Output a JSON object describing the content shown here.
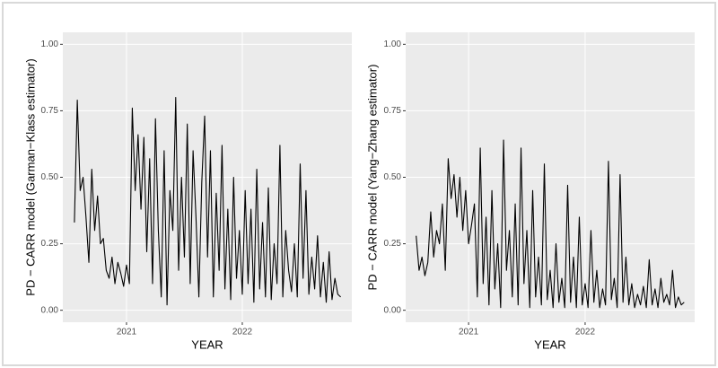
{
  "chart_data": [
    {
      "type": "line",
      "ylabel": "PD − CARR model (Garman−Klass estimator)",
      "xlabel": "YEAR",
      "x": [
        2020.55,
        2020.575,
        2020.6,
        2020.625,
        2020.65,
        2020.675,
        2020.7,
        2020.725,
        2020.75,
        2020.775,
        2020.8,
        2020.825,
        2020.85,
        2020.875,
        2020.9,
        2020.925,
        2020.95,
        2020.975,
        2021,
        2021.025,
        2021.05,
        2021.075,
        2021.1,
        2021.125,
        2021.15,
        2021.175,
        2021.2,
        2021.225,
        2021.25,
        2021.275,
        2021.3,
        2021.325,
        2021.35,
        2021.375,
        2021.4,
        2021.425,
        2021.45,
        2021.475,
        2021.5,
        2021.525,
        2021.55,
        2021.575,
        2021.6,
        2021.625,
        2021.65,
        2021.675,
        2021.7,
        2021.725,
        2021.75,
        2021.775,
        2021.8,
        2021.825,
        2021.85,
        2021.875,
        2021.9,
        2021.925,
        2021.95,
        2021.975,
        2022,
        2022.025,
        2022.05,
        2022.075,
        2022.1,
        2022.125,
        2022.15,
        2022.175,
        2022.2,
        2022.225,
        2022.25,
        2022.275,
        2022.3,
        2022.325,
        2022.35,
        2022.375,
        2022.4,
        2022.425,
        2022.45,
        2022.475,
        2022.5,
        2022.525,
        2022.55,
        2022.575,
        2022.6,
        2022.625,
        2022.65,
        2022.675,
        2022.7,
        2022.725,
        2022.75,
        2022.775,
        2022.8,
        2022.825,
        2022.85
      ],
      "series": [
        {
          "color": "#000000",
          "values": [
            0.33,
            0.79,
            0.45,
            0.5,
            0.35,
            0.18,
            0.53,
            0.3,
            0.43,
            0.25,
            0.27,
            0.15,
            0.12,
            0.2,
            0.1,
            0.18,
            0.14,
            0.09,
            0.17,
            0.1,
            0.76,
            0.45,
            0.66,
            0.38,
            0.65,
            0.22,
            0.57,
            0.1,
            0.72,
            0.3,
            0.05,
            0.6,
            0.02,
            0.45,
            0.3,
            0.8,
            0.15,
            0.5,
            0.2,
            0.7,
            0.1,
            0.6,
            0.35,
            0.05,
            0.48,
            0.73,
            0.2,
            0.6,
            0.05,
            0.44,
            0.15,
            0.62,
            0.08,
            0.38,
            0.04,
            0.5,
            0.12,
            0.3,
            0.06,
            0.45,
            0.1,
            0.38,
            0.03,
            0.53,
            0.08,
            0.33,
            0.05,
            0.46,
            0.04,
            0.25,
            0.1,
            0.62,
            0.05,
            0.3,
            0.15,
            0.07,
            0.25,
            0.05,
            0.55,
            0.12,
            0.45,
            0.06,
            0.2,
            0.08,
            0.28,
            0.05,
            0.18,
            0.03,
            0.22,
            0.04,
            0.12,
            0.06,
            0.05
          ]
        }
      ],
      "xlim": [
        2020.45,
        2022.946
      ],
      "xticks": [
        2021,
        2022
      ],
      "ylim": [
        -0.045,
        1.045
      ],
      "yticks": [
        {
          "value": 0,
          "label": "0.00"
        },
        {
          "value": 0.25,
          "label": "0.25"
        },
        {
          "value": 0.5,
          "label": "0.50"
        },
        {
          "value": 0.75,
          "label": "0.75"
        },
        {
          "value": 1,
          "label": "1.00"
        }
      ],
      "grid": true
    },
    {
      "type": "line",
      "ylabel": "PD − CARR model (Yang−Zhang estimator)",
      "xlabel": "YEAR",
      "x": [
        2020.55,
        2020.575,
        2020.6,
        2020.625,
        2020.65,
        2020.675,
        2020.7,
        2020.725,
        2020.75,
        2020.775,
        2020.8,
        2020.825,
        2020.85,
        2020.875,
        2020.9,
        2020.925,
        2020.95,
        2020.975,
        2021,
        2021.025,
        2021.05,
        2021.075,
        2021.1,
        2021.125,
        2021.15,
        2021.175,
        2021.2,
        2021.225,
        2021.25,
        2021.275,
        2021.3,
        2021.325,
        2021.35,
        2021.375,
        2021.4,
        2021.425,
        2021.45,
        2021.475,
        2021.5,
        2021.525,
        2021.55,
        2021.575,
        2021.6,
        2021.625,
        2021.65,
        2021.675,
        2021.7,
        2021.725,
        2021.75,
        2021.775,
        2021.8,
        2021.825,
        2021.85,
        2021.875,
        2021.9,
        2021.925,
        2021.95,
        2021.975,
        2022,
        2022.025,
        2022.05,
        2022.075,
        2022.1,
        2022.125,
        2022.15,
        2022.175,
        2022.2,
        2022.225,
        2022.25,
        2022.275,
        2022.3,
        2022.325,
        2022.35,
        2022.375,
        2022.4,
        2022.425,
        2022.45,
        2022.475,
        2022.5,
        2022.525,
        2022.55,
        2022.575,
        2022.6,
        2022.625,
        2022.65,
        2022.675,
        2022.7,
        2022.725,
        2022.75,
        2022.775,
        2022.8,
        2022.825,
        2022.85
      ],
      "series": [
        {
          "color": "#000000",
          "values": [
            0.28,
            0.15,
            0.2,
            0.13,
            0.18,
            0.37,
            0.2,
            0.3,
            0.25,
            0.4,
            0.15,
            0.57,
            0.42,
            0.51,
            0.35,
            0.5,
            0.3,
            0.45,
            0.25,
            0.32,
            0.4,
            0.05,
            0.61,
            0.1,
            0.35,
            0.02,
            0.45,
            0.08,
            0.25,
            0.01,
            0.64,
            0.15,
            0.3,
            0.05,
            0.4,
            0.02,
            0.61,
            0.1,
            0.3,
            0.01,
            0.45,
            0.05,
            0.2,
            0.02,
            0.55,
            0.04,
            0.15,
            0.01,
            0.25,
            0.03,
            0.12,
            0.01,
            0.47,
            0.03,
            0.2,
            0.01,
            0.35,
            0.02,
            0.1,
            0.01,
            0.3,
            0.03,
            0.15,
            0.01,
            0.08,
            0.02,
            0.56,
            0.04,
            0.12,
            0.01,
            0.51,
            0.03,
            0.2,
            0.02,
            0.1,
            0.01,
            0.06,
            0.02,
            0.09,
            0.01,
            0.19,
            0.02,
            0.08,
            0.01,
            0.12,
            0.03,
            0.06,
            0.02,
            0.15,
            0.01,
            0.05,
            0.02,
            0.03
          ]
        }
      ],
      "xlim": [
        2020.46,
        2022.94
      ],
      "xticks": [
        2021,
        2022
      ],
      "ylim": [
        -0.045,
        1.045
      ],
      "yticks": [
        {
          "value": 0,
          "label": "0.00"
        },
        {
          "value": 0.25,
          "label": "0.25"
        },
        {
          "value": 0.5,
          "label": "0.50"
        },
        {
          "value": 0.75,
          "label": "0.75"
        },
        {
          "value": 1,
          "label": "1.00"
        }
      ],
      "grid": true
    }
  ]
}
